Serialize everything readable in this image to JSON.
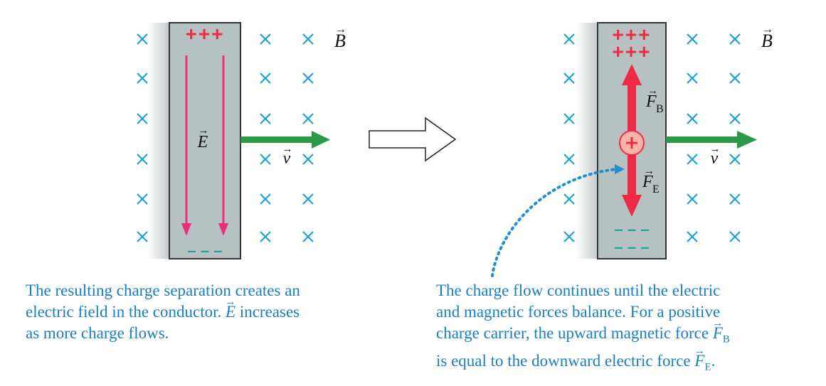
{
  "colors": {
    "cross": "#1ba3d6",
    "plus": "#ee2b47",
    "minus": "#1aa39a",
    "efield": "#e8307a",
    "force": "#ee2b47",
    "velocity": "#2a9a48",
    "conductor": "#b7c1c2",
    "caption": "#1a7fc1",
    "dots": "#1f8fd0"
  },
  "icons": {
    "cross": "x-mark",
    "transition": "hollow-right-arrow"
  },
  "labels": {
    "B": "B",
    "E": "E",
    "v": "v",
    "F": "F",
    "sub_B": "B",
    "sub_E": "E",
    "plus_row": "+++",
    "minus_row": "– – –"
  },
  "captions": {
    "left": {
      "line1": "The resulting charge separation creates an",
      "line2a": "electric field in the conductor. ",
      "line2_symbol": "E",
      "line2b": " increases",
      "line3": "as more charge flows."
    },
    "right": {
      "line1": "The charge flow continues until the electric",
      "line2": "and magnetic forces balance. For a positive",
      "line3a": "charge carrier, the upward magnetic force ",
      "line3_symbol": "F",
      "line3_sub": "B",
      "line4a": "is equal to the downward electric force ",
      "line4_symbol": "F",
      "line4_sub": "E",
      "line4b": "."
    }
  }
}
